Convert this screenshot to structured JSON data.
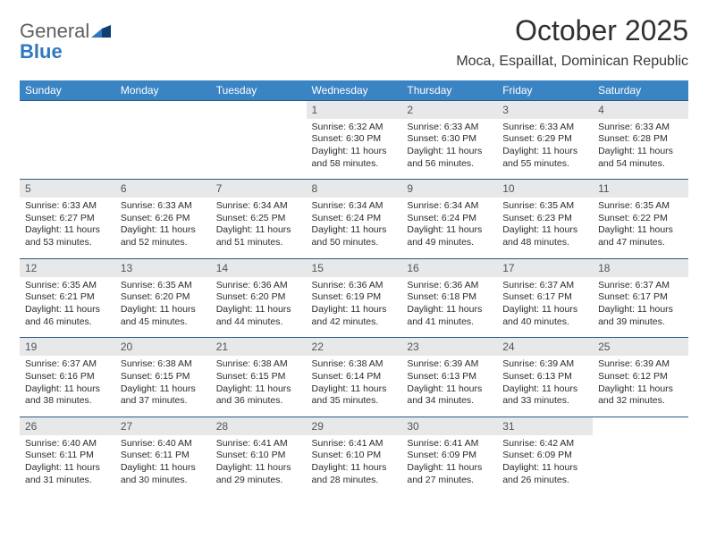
{
  "brand": {
    "word1": "General",
    "word2": "Blue",
    "color_gray": "#5f5f5f",
    "color_blue": "#2f78bd"
  },
  "header": {
    "title": "October 2025",
    "location": "Moca, Espaillat, Dominican Republic"
  },
  "palette": {
    "header_bg": "#3b84c4",
    "header_fg": "#ffffff",
    "daynum_bg": "#e7e8e9",
    "daynum_fg": "#545454",
    "week_border": "#2a5a88",
    "body_text": "#2b2b2b"
  },
  "weekdays": [
    "Sunday",
    "Monday",
    "Tuesday",
    "Wednesday",
    "Thursday",
    "Friday",
    "Saturday"
  ],
  "weeks": [
    [
      {
        "n": "",
        "empty": true
      },
      {
        "n": "",
        "empty": true
      },
      {
        "n": "",
        "empty": true
      },
      {
        "n": "1",
        "sr": "Sunrise: 6:32 AM",
        "ss": "Sunset: 6:30 PM",
        "d1": "Daylight: 11 hours",
        "d2": "and 58 minutes."
      },
      {
        "n": "2",
        "sr": "Sunrise: 6:33 AM",
        "ss": "Sunset: 6:30 PM",
        "d1": "Daylight: 11 hours",
        "d2": "and 56 minutes."
      },
      {
        "n": "3",
        "sr": "Sunrise: 6:33 AM",
        "ss": "Sunset: 6:29 PM",
        "d1": "Daylight: 11 hours",
        "d2": "and 55 minutes."
      },
      {
        "n": "4",
        "sr": "Sunrise: 6:33 AM",
        "ss": "Sunset: 6:28 PM",
        "d1": "Daylight: 11 hours",
        "d2": "and 54 minutes."
      }
    ],
    [
      {
        "n": "5",
        "sr": "Sunrise: 6:33 AM",
        "ss": "Sunset: 6:27 PM",
        "d1": "Daylight: 11 hours",
        "d2": "and 53 minutes."
      },
      {
        "n": "6",
        "sr": "Sunrise: 6:33 AM",
        "ss": "Sunset: 6:26 PM",
        "d1": "Daylight: 11 hours",
        "d2": "and 52 minutes."
      },
      {
        "n": "7",
        "sr": "Sunrise: 6:34 AM",
        "ss": "Sunset: 6:25 PM",
        "d1": "Daylight: 11 hours",
        "d2": "and 51 minutes."
      },
      {
        "n": "8",
        "sr": "Sunrise: 6:34 AM",
        "ss": "Sunset: 6:24 PM",
        "d1": "Daylight: 11 hours",
        "d2": "and 50 minutes."
      },
      {
        "n": "9",
        "sr": "Sunrise: 6:34 AM",
        "ss": "Sunset: 6:24 PM",
        "d1": "Daylight: 11 hours",
        "d2": "and 49 minutes."
      },
      {
        "n": "10",
        "sr": "Sunrise: 6:35 AM",
        "ss": "Sunset: 6:23 PM",
        "d1": "Daylight: 11 hours",
        "d2": "and 48 minutes."
      },
      {
        "n": "11",
        "sr": "Sunrise: 6:35 AM",
        "ss": "Sunset: 6:22 PM",
        "d1": "Daylight: 11 hours",
        "d2": "and 47 minutes."
      }
    ],
    [
      {
        "n": "12",
        "sr": "Sunrise: 6:35 AM",
        "ss": "Sunset: 6:21 PM",
        "d1": "Daylight: 11 hours",
        "d2": "and 46 minutes."
      },
      {
        "n": "13",
        "sr": "Sunrise: 6:35 AM",
        "ss": "Sunset: 6:20 PM",
        "d1": "Daylight: 11 hours",
        "d2": "and 45 minutes."
      },
      {
        "n": "14",
        "sr": "Sunrise: 6:36 AM",
        "ss": "Sunset: 6:20 PM",
        "d1": "Daylight: 11 hours",
        "d2": "and 44 minutes."
      },
      {
        "n": "15",
        "sr": "Sunrise: 6:36 AM",
        "ss": "Sunset: 6:19 PM",
        "d1": "Daylight: 11 hours",
        "d2": "and 42 minutes."
      },
      {
        "n": "16",
        "sr": "Sunrise: 6:36 AM",
        "ss": "Sunset: 6:18 PM",
        "d1": "Daylight: 11 hours",
        "d2": "and 41 minutes."
      },
      {
        "n": "17",
        "sr": "Sunrise: 6:37 AM",
        "ss": "Sunset: 6:17 PM",
        "d1": "Daylight: 11 hours",
        "d2": "and 40 minutes."
      },
      {
        "n": "18",
        "sr": "Sunrise: 6:37 AM",
        "ss": "Sunset: 6:17 PM",
        "d1": "Daylight: 11 hours",
        "d2": "and 39 minutes."
      }
    ],
    [
      {
        "n": "19",
        "sr": "Sunrise: 6:37 AM",
        "ss": "Sunset: 6:16 PM",
        "d1": "Daylight: 11 hours",
        "d2": "and 38 minutes."
      },
      {
        "n": "20",
        "sr": "Sunrise: 6:38 AM",
        "ss": "Sunset: 6:15 PM",
        "d1": "Daylight: 11 hours",
        "d2": "and 37 minutes."
      },
      {
        "n": "21",
        "sr": "Sunrise: 6:38 AM",
        "ss": "Sunset: 6:15 PM",
        "d1": "Daylight: 11 hours",
        "d2": "and 36 minutes."
      },
      {
        "n": "22",
        "sr": "Sunrise: 6:38 AM",
        "ss": "Sunset: 6:14 PM",
        "d1": "Daylight: 11 hours",
        "d2": "and 35 minutes."
      },
      {
        "n": "23",
        "sr": "Sunrise: 6:39 AM",
        "ss": "Sunset: 6:13 PM",
        "d1": "Daylight: 11 hours",
        "d2": "and 34 minutes."
      },
      {
        "n": "24",
        "sr": "Sunrise: 6:39 AM",
        "ss": "Sunset: 6:13 PM",
        "d1": "Daylight: 11 hours",
        "d2": "and 33 minutes."
      },
      {
        "n": "25",
        "sr": "Sunrise: 6:39 AM",
        "ss": "Sunset: 6:12 PM",
        "d1": "Daylight: 11 hours",
        "d2": "and 32 minutes."
      }
    ],
    [
      {
        "n": "26",
        "sr": "Sunrise: 6:40 AM",
        "ss": "Sunset: 6:11 PM",
        "d1": "Daylight: 11 hours",
        "d2": "and 31 minutes."
      },
      {
        "n": "27",
        "sr": "Sunrise: 6:40 AM",
        "ss": "Sunset: 6:11 PM",
        "d1": "Daylight: 11 hours",
        "d2": "and 30 minutes."
      },
      {
        "n": "28",
        "sr": "Sunrise: 6:41 AM",
        "ss": "Sunset: 6:10 PM",
        "d1": "Daylight: 11 hours",
        "d2": "and 29 minutes."
      },
      {
        "n": "29",
        "sr": "Sunrise: 6:41 AM",
        "ss": "Sunset: 6:10 PM",
        "d1": "Daylight: 11 hours",
        "d2": "and 28 minutes."
      },
      {
        "n": "30",
        "sr": "Sunrise: 6:41 AM",
        "ss": "Sunset: 6:09 PM",
        "d1": "Daylight: 11 hours",
        "d2": "and 27 minutes."
      },
      {
        "n": "31",
        "sr": "Sunrise: 6:42 AM",
        "ss": "Sunset: 6:09 PM",
        "d1": "Daylight: 11 hours",
        "d2": "and 26 minutes."
      },
      {
        "n": "",
        "empty": true
      }
    ]
  ]
}
